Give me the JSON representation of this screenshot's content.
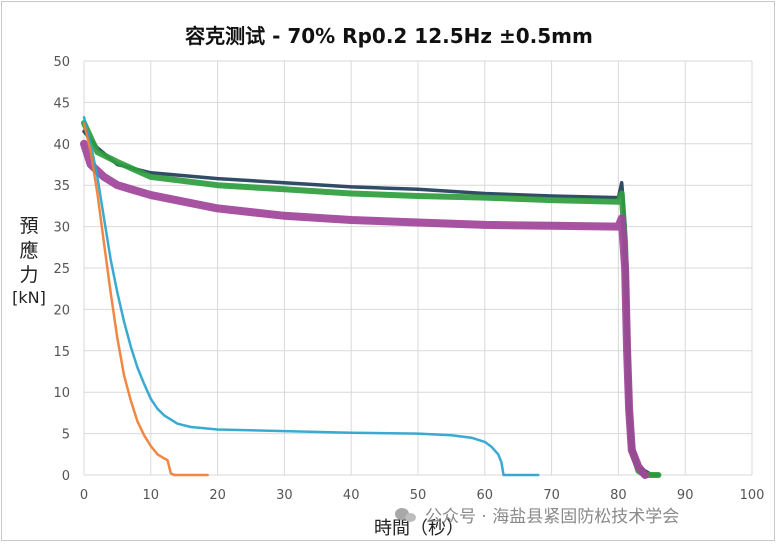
{
  "chart_data": {
    "type": "line",
    "title": "容克测试 - 70% Rp0.2  12.5Hz  ±0.5mm",
    "ylabel_chars": [
      "預",
      "應",
      "力"
    ],
    "ylabel_unit": "[kN]",
    "xlabel": "時間（秒）",
    "xlim": [
      0,
      100
    ],
    "ylim": [
      0,
      50
    ],
    "xticks": [
      0,
      10,
      20,
      30,
      40,
      50,
      60,
      70,
      80,
      90,
      100
    ],
    "yticks": [
      0,
      5,
      10,
      15,
      20,
      25,
      30,
      35,
      40,
      45,
      50
    ],
    "grid": true,
    "series": [
      {
        "color": "#1f3d5a",
        "points": [
          [
            0,
            41.5
          ],
          [
            2,
            39.5
          ],
          [
            5,
            37.5
          ],
          [
            10,
            36.5
          ],
          [
            20,
            35.8
          ],
          [
            30,
            35.3
          ],
          [
            40,
            34.8
          ],
          [
            50,
            34.5
          ],
          [
            60,
            34.0
          ],
          [
            70,
            33.7
          ],
          [
            80,
            33.5
          ],
          [
            80.5,
            35.3
          ],
          [
            81,
            30
          ],
          [
            81.3,
            20
          ],
          [
            81.6,
            10
          ],
          [
            82,
            4
          ],
          [
            83,
            1
          ],
          [
            85,
            0
          ],
          [
            86,
            0
          ]
        ]
      },
      {
        "color": "#2e9d3e",
        "points": [
          [
            0,
            42.5
          ],
          [
            2,
            39
          ],
          [
            5,
            37.8
          ],
          [
            10,
            36
          ],
          [
            20,
            35
          ],
          [
            30,
            34.5
          ],
          [
            40,
            34
          ],
          [
            50,
            33.7
          ],
          [
            60,
            33.5
          ],
          [
            70,
            33.2
          ],
          [
            80,
            33
          ],
          [
            80.5,
            34
          ],
          [
            81,
            28
          ],
          [
            81.3,
            18
          ],
          [
            81.6,
            8
          ],
          [
            82,
            3
          ],
          [
            83,
            0.5
          ],
          [
            84,
            0
          ],
          [
            86,
            0
          ]
        ]
      },
      {
        "color": "#a0449a",
        "points": [
          [
            0,
            40
          ],
          [
            1,
            37.5
          ],
          [
            3,
            36
          ],
          [
            5,
            35
          ],
          [
            10,
            33.8
          ],
          [
            20,
            32.2
          ],
          [
            30,
            31.3
          ],
          [
            40,
            30.8
          ],
          [
            50,
            30.5
          ],
          [
            60,
            30.2
          ],
          [
            70,
            30.1
          ],
          [
            80,
            30
          ],
          [
            80.5,
            31
          ],
          [
            81,
            25
          ],
          [
            81.3,
            15
          ],
          [
            81.6,
            8
          ],
          [
            82,
            3
          ],
          [
            83,
            1
          ],
          [
            84,
            0
          ]
        ]
      },
      {
        "color": "#2aa3cc",
        "points": [
          [
            0,
            43.2
          ],
          [
            1,
            40
          ],
          [
            2,
            36
          ],
          [
            3,
            31
          ],
          [
            4,
            26
          ],
          [
            5,
            22
          ],
          [
            6,
            18.5
          ],
          [
            7,
            15.5
          ],
          [
            8,
            13
          ],
          [
            9,
            11
          ],
          [
            10,
            9.2
          ],
          [
            11,
            8
          ],
          [
            12,
            7.2
          ],
          [
            14,
            6.2
          ],
          [
            16,
            5.8
          ],
          [
            20,
            5.5
          ],
          [
            30,
            5.3
          ],
          [
            40,
            5.1
          ],
          [
            50,
            5.0
          ],
          [
            55,
            4.8
          ],
          [
            58,
            4.5
          ],
          [
            60,
            4.0
          ],
          [
            61,
            3.4
          ],
          [
            62,
            2.5
          ],
          [
            62.5,
            1.5
          ],
          [
            62.8,
            0
          ],
          [
            68,
            0
          ]
        ]
      },
      {
        "color": "#f07d33",
        "points": [
          [
            0,
            42.5
          ],
          [
            1,
            39
          ],
          [
            2,
            34
          ],
          [
            3,
            28
          ],
          [
            4,
            22
          ],
          [
            5,
            16.5
          ],
          [
            6,
            12
          ],
          [
            7,
            9
          ],
          [
            8,
            6.5
          ],
          [
            9,
            4.8
          ],
          [
            10,
            3.5
          ],
          [
            11,
            2.5
          ],
          [
            12,
            2.0
          ],
          [
            12.5,
            1.8
          ],
          [
            13,
            0.2
          ],
          [
            13.5,
            0
          ],
          [
            18.5,
            0
          ]
        ]
      }
    ]
  },
  "watermark": {
    "icon": "wechat-icon",
    "text": "公众号 · 海盐县紧固防松技术学会"
  }
}
